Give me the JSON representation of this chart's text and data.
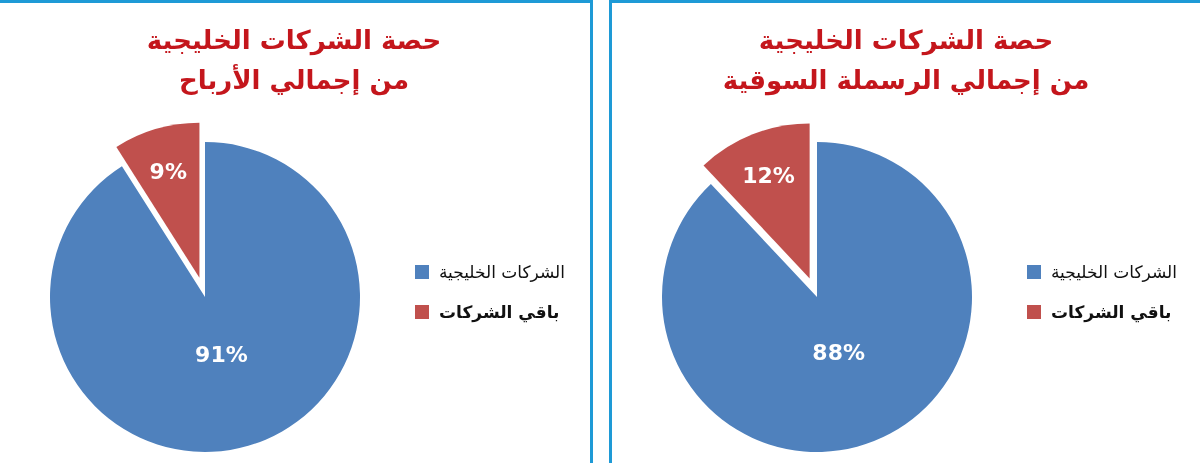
{
  "chart_data": [
    {
      "type": "pie",
      "title": "حصة الشركات الخليجية\nمن إجمالي الأرباح",
      "categories": [
        "الشركات الخليجية",
        "باقي الشركات"
      ],
      "values": [
        91,
        9
      ],
      "colors": [
        "#4f81bd",
        "#c0504d"
      ],
      "value_labels": [
        "91%",
        "9%"
      ],
      "legend": "right"
    },
    {
      "type": "pie",
      "title": "حصة الشركات الخليجية\nمن إجمالي الرسملة السوقية",
      "categories": [
        "الشركات الخليجية",
        "باقي الشركات"
      ],
      "values": [
        88,
        12
      ],
      "colors": [
        "#4f81bd",
        "#c0504d"
      ],
      "value_labels": [
        "88%",
        "12%"
      ],
      "legend": "right"
    }
  ]
}
